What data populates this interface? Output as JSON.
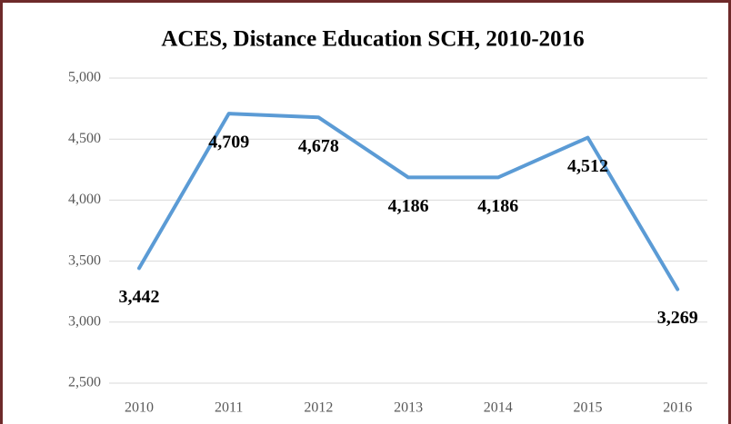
{
  "chart_data": {
    "type": "line",
    "title": "ACES, Distance Education SCH, 2010-2016",
    "categories": [
      "2010",
      "2011",
      "2012",
      "2013",
      "2014",
      "2015",
      "2016"
    ],
    "series": [
      {
        "name": "Distance Education SCH",
        "color": "#5b9bd5",
        "values": [
          3442,
          4709,
          4678,
          4186,
          4186,
          4512,
          3269
        ],
        "value_labels": [
          "3,442",
          "4,709",
          "4,678",
          "4,186",
          "4,186",
          "4,512",
          "3,269"
        ]
      }
    ],
    "ylim": [
      2500,
      5000
    ],
    "yticks": [
      {
        "value": 2500,
        "label": "2,500"
      },
      {
        "value": 3000,
        "label": "3,000"
      },
      {
        "value": 3500,
        "label": "3,500"
      },
      {
        "value": 4000,
        "label": "4,000"
      },
      {
        "value": 4500,
        "label": "4,500"
      },
      {
        "value": 5000,
        "label": "5,000"
      }
    ],
    "grid": true
  }
}
